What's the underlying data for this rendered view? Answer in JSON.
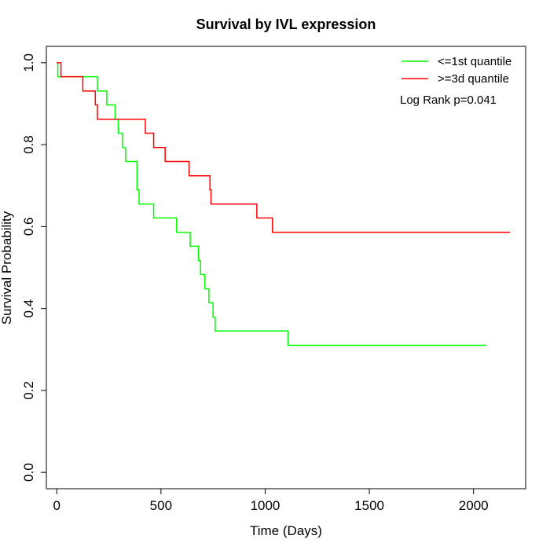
{
  "chart_data": {
    "type": "line",
    "title": "Survival by IVL expression",
    "xlabel": "Time (Days)",
    "ylabel": "Survival Probability",
    "xlim": [
      -50,
      2250
    ],
    "ylim": [
      -0.04,
      1.04
    ],
    "xticks": [
      0,
      500,
      1000,
      1500,
      2000
    ],
    "yticks": [
      0.0,
      0.2,
      0.4,
      0.6,
      0.8,
      1.0
    ],
    "xtick_labels": [
      "0",
      "500",
      "1000",
      "1500",
      "2000"
    ],
    "ytick_labels": [
      "0.0",
      "0.2",
      "0.4",
      "0.6",
      "0.8",
      "1.0"
    ],
    "grid": false,
    "legend_position": "top-right",
    "annotation": "Log Rank p=0.041",
    "series": [
      {
        "name": "<=1st quantile",
        "color": "#00ff00",
        "step": true,
        "x": [
          0,
          5,
          195,
          240,
          280,
          295,
          315,
          330,
          385,
          395,
          465,
          575,
          640,
          680,
          690,
          710,
          730,
          750,
          760,
          820,
          1110,
          2060
        ],
        "y": [
          1.0,
          0.966,
          0.931,
          0.897,
          0.862,
          0.828,
          0.793,
          0.759,
          0.69,
          0.655,
          0.621,
          0.586,
          0.552,
          0.517,
          0.483,
          0.448,
          0.414,
          0.379,
          0.345,
          0.345,
          0.31,
          0.31
        ]
      },
      {
        "name": ">=3d quantile",
        "color": "#ff0000",
        "step": true,
        "x": [
          0,
          20,
          125,
          185,
          195,
          425,
          465,
          520,
          635,
          735,
          740,
          960,
          1035,
          2175
        ],
        "y": [
          1.0,
          0.966,
          0.931,
          0.897,
          0.862,
          0.828,
          0.793,
          0.759,
          0.724,
          0.69,
          0.655,
          0.621,
          0.586,
          0.586
        ]
      }
    ]
  }
}
